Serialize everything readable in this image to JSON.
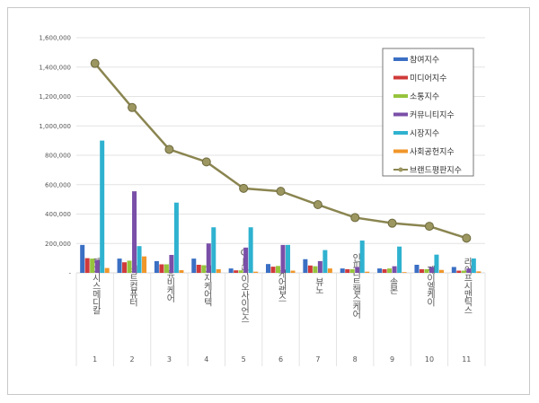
{
  "chart_data": {
    "type": "bar",
    "categories": [
      "제이시스메디칼",
      "비트컴퓨터",
      "유비케어",
      "이지케어텍",
      "CJ바이오사이언스",
      "케어랩스",
      "뷰노",
      "인피니트헬스케어",
      "솔본",
      "제이엘케이",
      "라이프시맨틱스"
    ],
    "category_numbers": [
      "1",
      "2",
      "3",
      "4",
      "5",
      "6",
      "7",
      "8",
      "9",
      "10",
      "11"
    ],
    "ylim": [
      0,
      1600000
    ],
    "yticks": [
      0,
      200000,
      400000,
      600000,
      800000,
      1000000,
      1200000,
      1400000,
      1600000
    ],
    "ytick_labels": [
      "-",
      "200,000",
      "400,000",
      "600,000",
      "800,000",
      "1,000,000",
      "1,200,000",
      "1,400,000",
      "1,600,000"
    ],
    "grid": true,
    "legend_position": "top-right",
    "series": [
      {
        "name": "참여지수",
        "kind": "bar",
        "color": "#3a6fc4",
        "values": [
          190000,
          97000,
          80000,
          97000,
          30000,
          60000,
          93000,
          30000,
          30000,
          55000,
          40000
        ]
      },
      {
        "name": "미디어지수",
        "kind": "bar",
        "color": "#d03a3a",
        "values": [
          100000,
          72000,
          58000,
          55000,
          17000,
          42000,
          50000,
          25000,
          25000,
          25000,
          15000
        ]
      },
      {
        "name": "소통지수",
        "kind": "bar",
        "color": "#96c43c",
        "values": [
          97000,
          83000,
          58000,
          52000,
          17000,
          47000,
          45000,
          25000,
          30000,
          25000,
          15000
        ]
      },
      {
        "name": "커뮤니티지수",
        "kind": "bar",
        "color": "#7a4fa8",
        "values": [
          88000,
          555000,
          122000,
          200000,
          172000,
          190000,
          80000,
          40000,
          45000,
          40000,
          30000
        ]
      },
      {
        "name": "시장지수",
        "kind": "bar",
        "color": "#2fb2d0",
        "values": [
          900000,
          182000,
          478000,
          310000,
          310000,
          190000,
          155000,
          220000,
          179000,
          124000,
          98000
        ]
      },
      {
        "name": "사회공헌지수",
        "kind": "bar",
        "color": "#f0962a",
        "values": [
          33000,
          112000,
          18000,
          25000,
          8000,
          15000,
          30000,
          8000,
          5000,
          20000,
          10000
        ]
      },
      {
        "name": "브랜드평판지수",
        "kind": "line",
        "color": "#8a8550",
        "values": [
          1425000,
          1125000,
          840000,
          755000,
          575000,
          555000,
          464000,
          376000,
          338000,
          317000,
          236000
        ]
      }
    ]
  }
}
